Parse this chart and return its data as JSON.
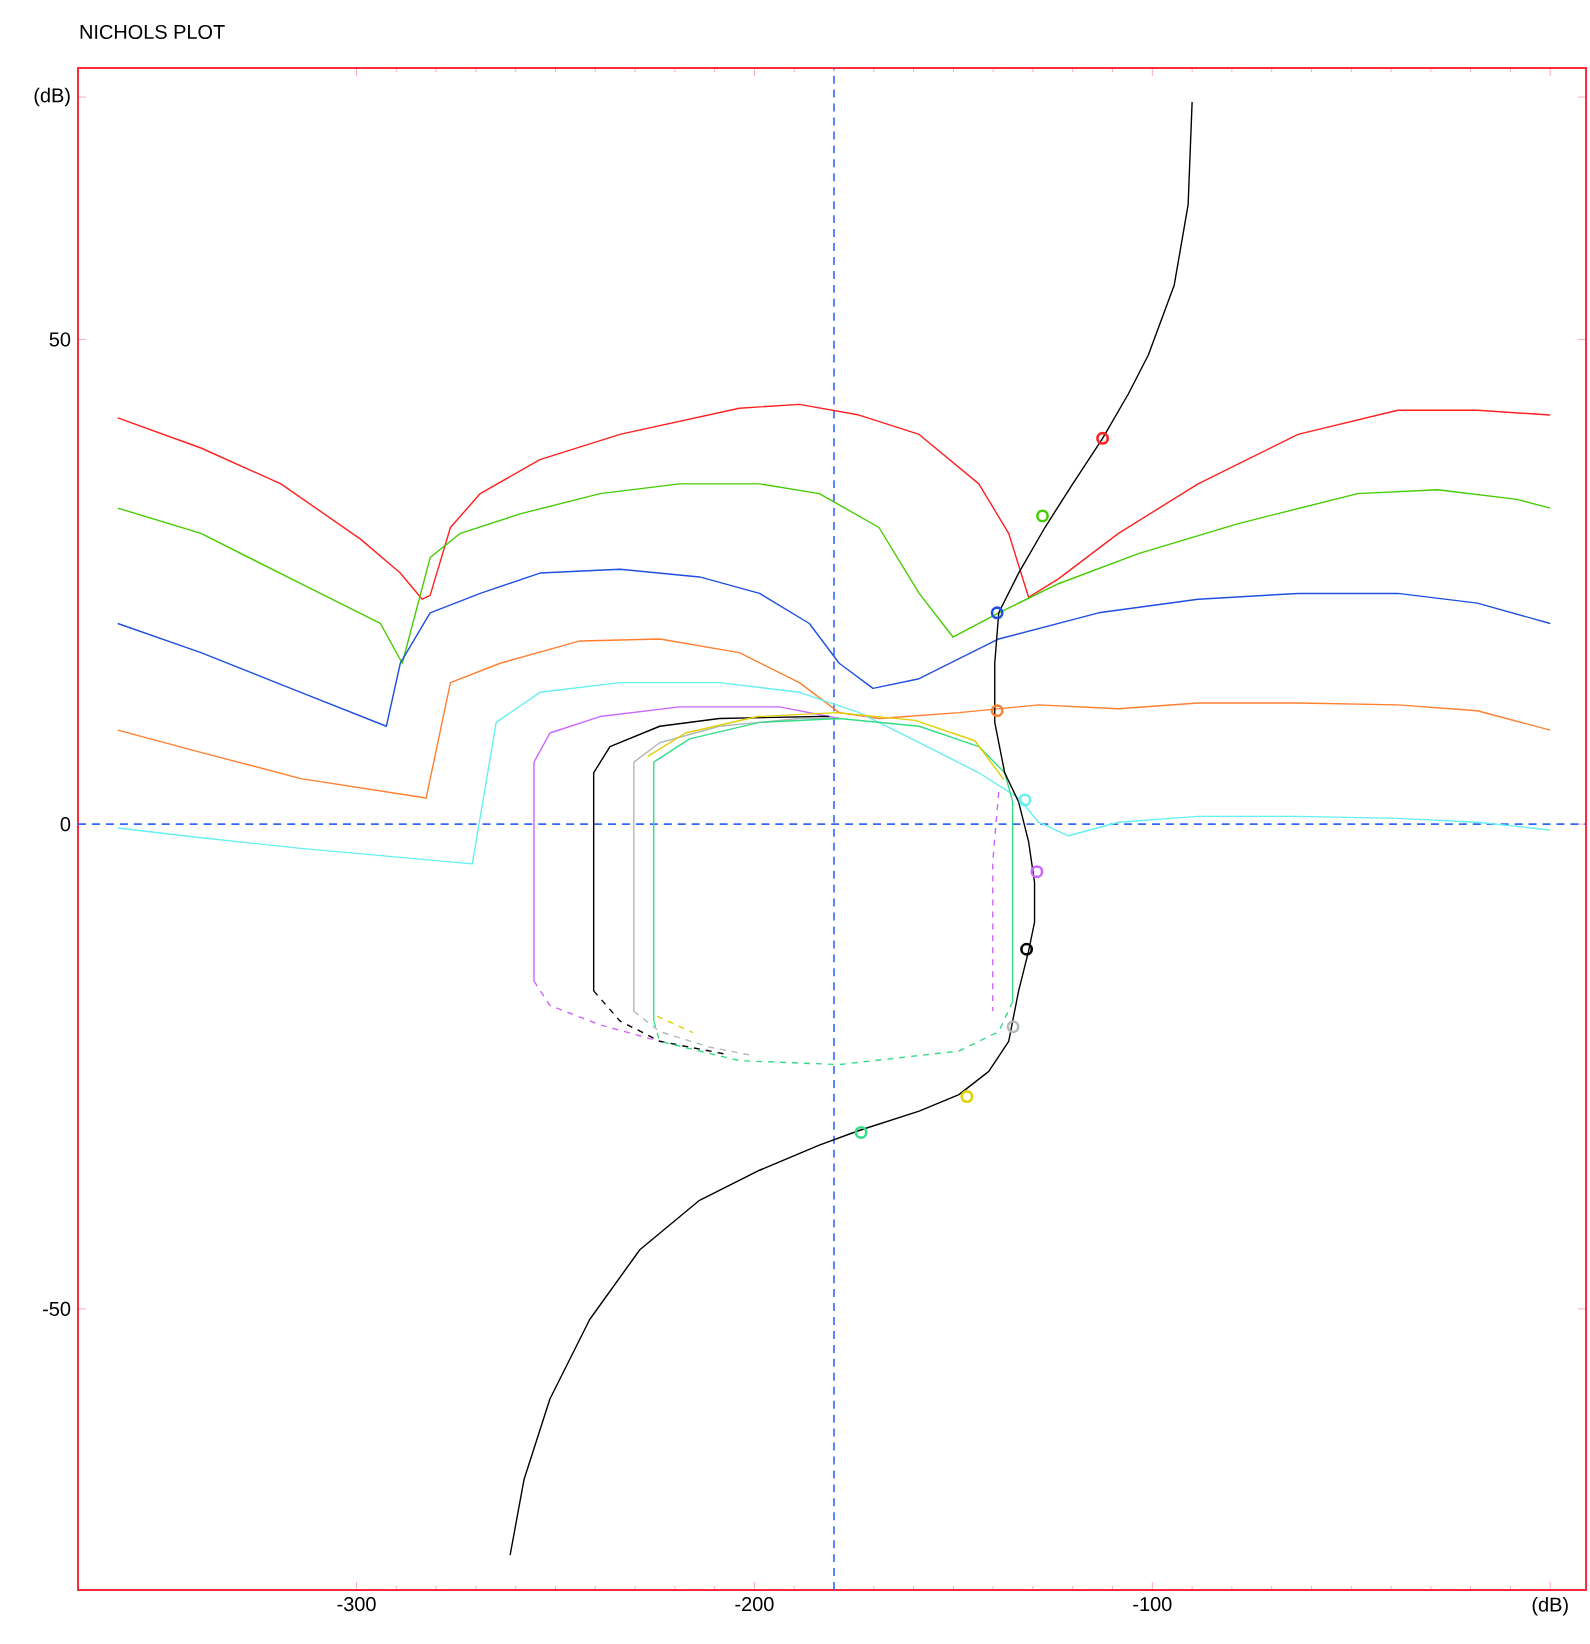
{
  "chart_data": {
    "type": "line",
    "title": "NICHOLS PLOT",
    "xlim": [
      -370,
      9
    ],
    "ylim": [
      -79,
      78
    ],
    "xticks": [
      -300,
      -200,
      -100,
      {
        "value": 0,
        "label": "(dB)"
      }
    ],
    "yticks": [
      -50,
      0,
      50,
      {
        "value": 75,
        "label": "(dB)"
      }
    ],
    "ref_lines": [
      {
        "axis": "x",
        "value": -180,
        "color": "#3366ff",
        "line_style": "dashed"
      },
      {
        "axis": "y",
        "value": 0,
        "color": "#3366ff",
        "line_style": "dashed"
      }
    ],
    "series": [
      {
        "color": "#ff2020",
        "x": [
          -360,
          -339.1,
          -319,
          -299,
          -289,
          -283.5,
          -281.5,
          -276.4,
          -268.9,
          -253.9,
          -233.8,
          -203.8,
          -188.7,
          -173.7,
          -158.6,
          -143.6,
          -136.1,
          -131.1,
          -123.6,
          -108.5,
          -88.5,
          -63.4,
          -38.3,
          -18.3,
          0
        ],
        "values": [
          41.9,
          38.8,
          35.1,
          29.4,
          25.9,
          23.2,
          23.6,
          30.6,
          34.1,
          37.6,
          40.2,
          42.9,
          43.3,
          42.2,
          40.2,
          35.1,
          30.0,
          23.4,
          25.3,
          30.0,
          35.1,
          40.2,
          42.7,
          42.7,
          42.2
        ]
      },
      {
        "color": "#44cc00",
        "x": [
          -360,
          -339.1,
          -314,
          -294,
          -288.5,
          -281.5,
          -273.9,
          -258.9,
          -238.8,
          -218.8,
          -198.7,
          -183.7,
          -168.7,
          -158.6,
          -150.1,
          -138.6,
          -123.6,
          -103.5,
          -78.4,
          -48.4,
          -28.3,
          -8.3,
          0
        ],
        "values": [
          32.6,
          30.0,
          24.8,
          20.7,
          16.6,
          27.5,
          30.0,
          32.0,
          34.1,
          35.1,
          35.1,
          34.1,
          30.6,
          23.8,
          19.3,
          21.8,
          24.8,
          27.9,
          31.0,
          34.1,
          34.5,
          33.5,
          32.6
        ]
      },
      {
        "color": "#1f4fe0",
        "x": [
          -360,
          -339.1,
          -314,
          -292.5,
          -289,
          -281.5,
          -268.9,
          -253.9,
          -233.8,
          -213.8,
          -198.7,
          -186.2,
          -178.7,
          -170.2,
          -158.6,
          -138.6,
          -113.5,
          -88.5,
          -63.4,
          -38.3,
          -18.3,
          0
        ],
        "values": [
          20.7,
          17.7,
          13.6,
          10.1,
          16.6,
          21.8,
          23.8,
          25.9,
          26.3,
          25.5,
          23.8,
          20.7,
          16.6,
          14.0,
          15.0,
          19.1,
          21.8,
          23.2,
          23.8,
          23.8,
          22.8,
          20.7
        ]
      },
      {
        "color": "#ff7f30",
        "x": [
          -360,
          -339.1,
          -314,
          -282.5,
          -276.4,
          -263.9,
          -243.8,
          -223.8,
          -203.8,
          -188.7,
          -178.7,
          -168.7,
          -148.6,
          -128.6,
          -108.5,
          -88.5,
          -63.4,
          -38.3,
          -18.3,
          0
        ],
        "values": [
          9.7,
          7.4,
          4.7,
          2.7,
          14.6,
          16.6,
          18.9,
          19.1,
          17.7,
          14.6,
          11.5,
          10.9,
          11.5,
          12.3,
          11.9,
          12.5,
          12.5,
          12.3,
          11.7,
          9.7
        ]
      },
      {
        "color": "#66f0f0",
        "x": [
          -360,
          -339.1,
          -314,
          -270.9,
          -264.9,
          -253.9,
          -233.8,
          -208.8,
          -188.7,
          -173.7,
          -158.6,
          -143.6,
          -133.6,
          -128.6,
          -121.1,
          -108.5,
          -88.5,
          -63.4,
          -38.3,
          -18.3,
          0
        ],
        "values": [
          -0.4,
          -1.4,
          -2.5,
          -4.1,
          10.5,
          13.6,
          14.6,
          14.6,
          13.6,
          11.5,
          8.4,
          5.3,
          2.7,
          0.2,
          -1.2,
          0.2,
          0.8,
          0.8,
          0.6,
          0.2,
          -0.6
        ]
      },
      {
        "color": "#cc66ff",
        "x": [
          -255.4,
          -255.4,
          -251.4,
          -238.8,
          -218.8,
          -193.7,
          -178.7
        ],
        "values": [
          -16.2,
          6.4,
          9.4,
          11.1,
          12.1,
          12.1,
          10.9
        ]
      },
      {
        "color": "#cc66ff",
        "line_style": "dashed",
        "x": [
          -255.4,
          -251.4,
          -238.8,
          -223.8
        ],
        "values": [
          -16.2,
          -18.7,
          -20.7,
          -22.4
        ]
      },
      {
        "color": "#cc66ff",
        "line_style": "dashed",
        "x": [
          -138.6,
          -140.1,
          -140.1
        ],
        "values": [
          3.3,
          -3.9,
          -19.3
        ]
      },
      {
        "color": "#000000",
        "x": [
          -240.4,
          -240.4,
          -236.3,
          -223.8,
          -208.8,
          -183.7,
          -181.2
        ],
        "values": [
          -17.2,
          5.3,
          8.0,
          10.1,
          10.9,
          11.1,
          11.1
        ]
      },
      {
        "color": "#000000",
        "line_style": "dashed",
        "x": [
          -240.4,
          -233.8,
          -223.8,
          -206.3
        ],
        "values": [
          -17.2,
          -20.3,
          -22.4,
          -23.8
        ]
      },
      {
        "color": "#b0b8b8",
        "x": [
          -230.3,
          -230.3,
          -223.8,
          -208.8,
          -188.7,
          -178.7
        ],
        "values": [
          -19.3,
          6.4,
          8.4,
          10.1,
          10.9,
          10.9
        ]
      },
      {
        "color": "#b0b8b8",
        "line_style": "dashed",
        "x": [
          -230.3,
          -223.8,
          -211.3,
          -201.3
        ],
        "values": [
          -19.3,
          -21.4,
          -23.0,
          -23.8
        ]
      },
      {
        "color": "#33dd88",
        "x": [
          -225.3,
          -225.3,
          -216.3,
          -198.7,
          -178.7,
          -158.6,
          -143.6,
          -137.1,
          -135.1,
          -135.1
        ],
        "values": [
          -20.3,
          6.4,
          8.8,
          10.5,
          10.9,
          10.1,
          8.0,
          5.3,
          2.3,
          -18.3
        ]
      },
      {
        "color": "#33dd88",
        "line_style": "dashed",
        "x": [
          -135.1,
          -138.6,
          -148.6,
          -178.7,
          -203.8,
          -223.8,
          -225.3
        ],
        "values": [
          -18.3,
          -21.4,
          -23.4,
          -24.8,
          -24.4,
          -22.4,
          -20.3
        ]
      },
      {
        "color": "#e0d000",
        "x": [
          -226.8,
          -217.3,
          -199.2,
          -179.2,
          -159.6,
          -144.6,
          -137.3
        ],
        "values": [
          7.0,
          9.4,
          11.1,
          11.5,
          10.7,
          8.6,
          4.6
        ]
      },
      {
        "color": "#e0d000",
        "line_style": "dashed",
        "x": [
          -224.5,
          -215.5
        ],
        "values": [
          -19.8,
          -21.5
        ]
      },
      {
        "color": "#000000",
        "x": [
          -90,
          -91,
          -94.5,
          -101,
          -106,
          -112.5,
          -120,
          -127,
          -133.6,
          -138.6,
          -139.6,
          -139.6,
          -137.1,
          -133.6,
          -131.1,
          -129.6,
          -129.6,
          -131.1,
          -133.6,
          -136.1,
          -141.1,
          -148.6,
          -158.6,
          -173.7,
          -183.7,
          -198.7,
          -213.8,
          -228.8,
          -241.4,
          -251.4,
          -257.9,
          -261.4
        ],
        "values": [
          74.5,
          63.9,
          55.6,
          48.4,
          44.4,
          39.8,
          35.1,
          30.6,
          25.9,
          21.8,
          16.6,
          10.5,
          5.3,
          2.3,
          -1.8,
          -6.0,
          -10.1,
          -13.1,
          -17.2,
          -22.4,
          -25.5,
          -27.9,
          -29.6,
          -31.6,
          -33.1,
          -35.7,
          -38.8,
          -43.9,
          -51.1,
          -59.3,
          -67.6,
          -75.4
        ]
      },
      {
        "type": "scatter",
        "marker": "circle",
        "x": [
          -112.5,
          -127.6,
          -139,
          -139,
          -132,
          -129,
          -131.6,
          -135,
          -146.6,
          -173.2
        ],
        "values": [
          39.8,
          31.8,
          21.8,
          11.7,
          2.5,
          -4.9,
          -12.9,
          -20.9,
          -28.1,
          -31.8
        ],
        "colors": [
          "#ff2020",
          "#44cc00",
          "#1f4fe0",
          "#ff7f30",
          "#66f0f0",
          "#cc66ff",
          "#000000",
          "#b0b8b8",
          "#e0d000",
          "#33dd88"
        ]
      }
    ]
  }
}
